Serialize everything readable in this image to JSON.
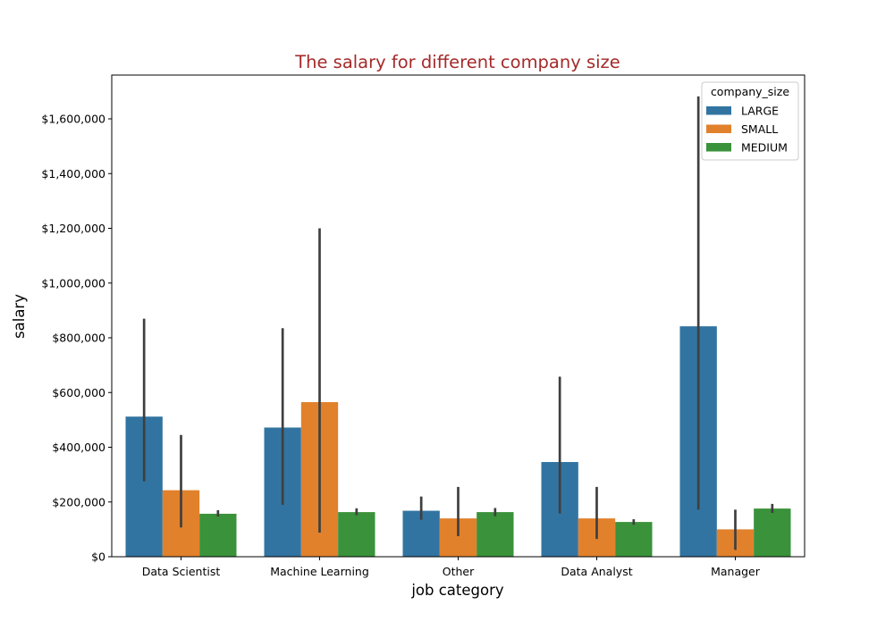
{
  "chart_data": {
    "type": "bar",
    "title": "The salary for different company size",
    "xlabel": "job category",
    "ylabel": "salary",
    "ylim": [
      0,
      1760000
    ],
    "y_ticks": [
      {
        "value": 0,
        "label": "$0"
      },
      {
        "value": 200000,
        "label": "$200,000"
      },
      {
        "value": 400000,
        "label": "$400,000"
      },
      {
        "value": 600000,
        "label": "$600,000"
      },
      {
        "value": 800000,
        "label": "$800,000"
      },
      {
        "value": 1000000,
        "label": "$1,000,000"
      },
      {
        "value": 1200000,
        "label": "$1,200,000"
      },
      {
        "value": 1400000,
        "label": "$1,400,000"
      },
      {
        "value": 1600000,
        "label": "$1,600,000"
      }
    ],
    "categories": [
      "Data Scientist",
      "Machine Learning",
      "Other",
      "Data Analyst",
      "Manager"
    ],
    "legend": {
      "title": "company_size",
      "placement": "top-right"
    },
    "series": [
      {
        "name": "LARGE",
        "color": "#3274a1",
        "values": [
          512000,
          472000,
          168000,
          346000,
          842000
        ],
        "ci_low": [
          275000,
          190000,
          135000,
          158000,
          172000
        ],
        "ci_high": [
          870000,
          835000,
          220000,
          658000,
          1682000
        ]
      },
      {
        "name": "SMALL",
        "color": "#e1812c",
        "values": [
          243000,
          565000,
          140000,
          140000,
          100000
        ],
        "ci_low": [
          107000,
          88000,
          75000,
          65000,
          25000
        ],
        "ci_high": [
          445000,
          1200000,
          255000,
          255000,
          172000
        ]
      },
      {
        "name": "MEDIUM",
        "color": "#3a923a",
        "values": [
          157000,
          163000,
          163000,
          127000,
          176000
        ],
        "ci_low": [
          147000,
          152000,
          148000,
          117000,
          160000
        ],
        "ci_high": [
          170000,
          177000,
          178000,
          137000,
          193000
        ]
      }
    ],
    "title_color": "#a52a2a",
    "errorbar_color": "#3f3f3f"
  }
}
